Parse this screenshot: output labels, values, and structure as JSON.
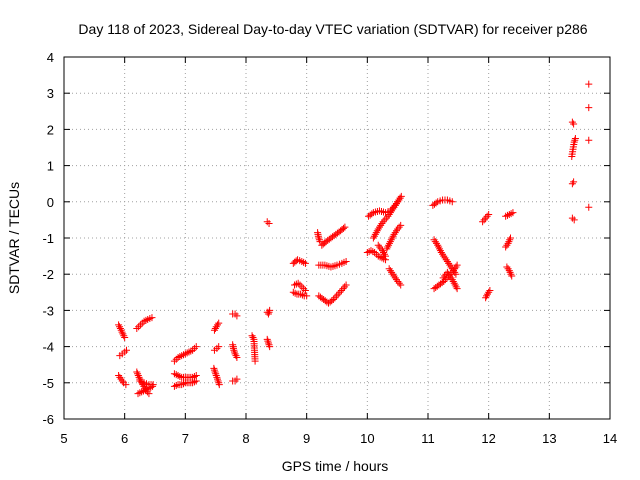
{
  "chart_data": {
    "type": "scatter",
    "title": "Day 118 of 2023, Sidereal Day-to-day VTEC variation (SDTVAR) for receiver p286",
    "xlabel": "GPS time / hours",
    "ylabel": "SDTVAR / TECUs",
    "xlim": [
      5,
      14
    ],
    "ylim": [
      -6,
      4
    ],
    "xticks": [
      "5",
      "6",
      "7",
      "8",
      "9",
      "10",
      "11",
      "12",
      "13",
      "14"
    ],
    "yticks": [
      "-6",
      "-5",
      "-4",
      "-3",
      "-2",
      "-1",
      "0",
      "1",
      "2",
      "3",
      "4"
    ],
    "grid": true,
    "marker": "plus",
    "color": "#ff0000",
    "series": [
      {
        "name": "SDTVAR",
        "segments": [
          [
            [
              5.9,
              -3.4
            ],
            [
              5.93,
              -3.5
            ],
            [
              5.97,
              -3.65
            ],
            [
              6.0,
              -3.75
            ]
          ],
          [
            [
              5.92,
              -4.25
            ],
            [
              5.96,
              -4.2
            ],
            [
              6.0,
              -4.15
            ],
            [
              6.03,
              -4.1
            ]
          ],
          [
            [
              5.9,
              -4.8
            ],
            [
              5.94,
              -4.9
            ],
            [
              5.98,
              -5.0
            ],
            [
              6.02,
              -5.05
            ]
          ],
          [
            [
              6.2,
              -3.5
            ],
            [
              6.26,
              -3.4
            ],
            [
              6.32,
              -3.3
            ],
            [
              6.38,
              -3.25
            ],
            [
              6.45,
              -3.2
            ]
          ],
          [
            [
              6.2,
              -4.7
            ],
            [
              6.25,
              -4.9
            ],
            [
              6.3,
              -5.05
            ],
            [
              6.35,
              -5.2
            ],
            [
              6.4,
              -5.3
            ]
          ],
          [
            [
              6.22,
              -5.3
            ],
            [
              6.28,
              -5.25
            ],
            [
              6.34,
              -5.2
            ],
            [
              6.4,
              -5.15
            ],
            [
              6.46,
              -5.1
            ]
          ],
          [
            [
              6.25,
              -4.95
            ],
            [
              6.32,
              -5.0
            ],
            [
              6.4,
              -5.05
            ],
            [
              6.47,
              -5.05
            ]
          ],
          [
            [
              6.82,
              -4.4
            ],
            [
              6.88,
              -4.3
            ],
            [
              6.94,
              -4.25
            ],
            [
              7.0,
              -4.2
            ],
            [
              7.06,
              -4.15
            ],
            [
              7.12,
              -4.1
            ],
            [
              7.18,
              -4.0
            ]
          ],
          [
            [
              6.82,
              -4.75
            ],
            [
              6.88,
              -4.8
            ],
            [
              6.94,
              -4.85
            ],
            [
              7.0,
              -4.85
            ],
            [
              7.06,
              -4.85
            ],
            [
              7.12,
              -4.85
            ],
            [
              7.18,
              -4.8
            ]
          ],
          [
            [
              6.82,
              -5.1
            ],
            [
              6.88,
              -5.05
            ],
            [
              6.94,
              -5.05
            ],
            [
              7.0,
              -5.0
            ],
            [
              7.06,
              -5.0
            ],
            [
              7.12,
              -5.0
            ],
            [
              7.18,
              -4.95
            ]
          ],
          [
            [
              7.48,
              -3.55
            ],
            [
              7.51,
              -3.45
            ],
            [
              7.55,
              -3.35
            ]
          ],
          [
            [
              7.48,
              -4.1
            ],
            [
              7.52,
              -4.05
            ],
            [
              7.55,
              -4.0
            ]
          ],
          [
            [
              7.47,
              -4.6
            ],
            [
              7.5,
              -4.75
            ],
            [
              7.53,
              -4.9
            ],
            [
              7.56,
              -5.05
            ]
          ],
          [
            [
              7.78,
              -3.1
            ],
            [
              7.82,
              -3.1
            ],
            [
              7.85,
              -3.15
            ]
          ],
          [
            [
              7.78,
              -3.95
            ],
            [
              7.8,
              -4.1
            ],
            [
              7.82,
              -4.2
            ],
            [
              7.85,
              -4.3
            ]
          ],
          [
            [
              7.78,
              -4.95
            ],
            [
              7.82,
              -4.95
            ],
            [
              7.85,
              -4.9
            ]
          ],
          [
            [
              8.1,
              -3.7
            ],
            [
              8.13,
              -3.8
            ],
            [
              8.15,
              -4.4
            ]
          ],
          [
            [
              8.35,
              -0.55
            ],
            [
              8.38,
              -0.6
            ]
          ],
          [
            [
              8.35,
              -3.05
            ],
            [
              8.37,
              -3.1
            ],
            [
              8.39,
              -3.0
            ]
          ],
          [
            [
              8.35,
              -3.8
            ],
            [
              8.37,
              -3.9
            ],
            [
              8.39,
              -4.0
            ]
          ],
          [
            [
              8.78,
              -1.7
            ],
            [
              8.85,
              -1.6
            ],
            [
              8.92,
              -1.65
            ],
            [
              8.98,
              -1.7
            ]
          ],
          [
            [
              8.78,
              -2.5
            ],
            [
              8.84,
              -2.55
            ],
            [
              8.9,
              -2.55
            ],
            [
              8.96,
              -2.6
            ],
            [
              9.0,
              -2.6
            ]
          ],
          [
            [
              8.8,
              -2.3
            ],
            [
              8.86,
              -2.25
            ],
            [
              8.92,
              -2.35
            ],
            [
              8.98,
              -2.45
            ]
          ],
          [
            [
              9.18,
              -0.85
            ],
            [
              9.2,
              -1.0
            ],
            [
              9.22,
              -1.1
            ]
          ],
          [
            [
              9.2,
              -2.6
            ],
            [
              9.28,
              -2.7
            ],
            [
              9.36,
              -2.8
            ],
            [
              9.44,
              -2.7
            ],
            [
              9.52,
              -2.55
            ],
            [
              9.6,
              -2.4
            ],
            [
              9.65,
              -2.3
            ]
          ],
          [
            [
              9.25,
              -1.2
            ],
            [
              9.32,
              -1.1
            ],
            [
              9.4,
              -1.0
            ],
            [
              9.48,
              -0.9
            ],
            [
              9.56,
              -0.8
            ],
            [
              9.63,
              -0.7
            ]
          ],
          [
            [
              9.2,
              -1.75
            ],
            [
              9.3,
              -1.75
            ],
            [
              9.4,
              -1.8
            ],
            [
              9.5,
              -1.75
            ],
            [
              9.58,
              -1.7
            ],
            [
              9.65,
              -1.65
            ]
          ],
          [
            [
              10.0,
              -1.4
            ],
            [
              10.06,
              -1.35
            ],
            [
              10.12,
              -1.4
            ],
            [
              10.18,
              -1.5
            ],
            [
              10.24,
              -1.55
            ],
            [
              10.3,
              -1.6
            ]
          ],
          [
            [
              10.02,
              -0.4
            ],
            [
              10.1,
              -0.3
            ],
            [
              10.2,
              -0.25
            ],
            [
              10.3,
              -0.3
            ],
            [
              10.38,
              -0.25
            ],
            [
              10.46,
              -0.1
            ],
            [
              10.54,
              0.1
            ]
          ],
          [
            [
              10.1,
              -1.0
            ],
            [
              10.18,
              -0.75
            ],
            [
              10.26,
              -0.55
            ],
            [
              10.34,
              -0.4
            ],
            [
              10.42,
              -0.2
            ],
            [
              10.5,
              0.0
            ],
            [
              10.56,
              0.15
            ]
          ],
          [
            [
              10.18,
              -1.2
            ],
            [
              10.25,
              -1.35
            ],
            [
              10.3,
              -1.5
            ]
          ],
          [
            [
              10.32,
              -1.3
            ],
            [
              10.38,
              -1.1
            ],
            [
              10.44,
              -0.9
            ],
            [
              10.5,
              -0.75
            ],
            [
              10.55,
              -0.65
            ]
          ],
          [
            [
              10.36,
              -1.85
            ],
            [
              10.42,
              -2.0
            ],
            [
              10.48,
              -2.15
            ],
            [
              10.55,
              -2.3
            ]
          ],
          [
            [
              11.08,
              -0.1
            ],
            [
              11.16,
              0.0
            ],
            [
              11.24,
              0.05
            ],
            [
              11.32,
              0.05
            ],
            [
              11.4,
              0.0
            ]
          ],
          [
            [
              11.1,
              -1.05
            ],
            [
              11.16,
              -1.2
            ],
            [
              11.22,
              -1.4
            ],
            [
              11.28,
              -1.55
            ],
            [
              11.34,
              -1.7
            ],
            [
              11.4,
              -1.85
            ],
            [
              11.46,
              -2.0
            ]
          ],
          [
            [
              11.1,
              -2.4
            ],
            [
              11.18,
              -2.3
            ],
            [
              11.26,
              -2.2
            ],
            [
              11.34,
              -2.05
            ],
            [
              11.42,
              -1.9
            ],
            [
              11.48,
              -1.75
            ]
          ],
          [
            [
              11.25,
              -2.1
            ],
            [
              11.32,
              -1.95
            ],
            [
              11.4,
              -2.15
            ],
            [
              11.48,
              -2.4
            ]
          ],
          [
            [
              11.9,
              -0.55
            ],
            [
              11.95,
              -0.45
            ],
            [
              12.0,
              -0.35
            ]
          ],
          [
            [
              11.95,
              -2.65
            ],
            [
              11.98,
              -2.55
            ],
            [
              12.02,
              -2.45
            ]
          ],
          [
            [
              12.28,
              -1.25
            ],
            [
              12.32,
              -1.15
            ],
            [
              12.36,
              -1.0
            ]
          ],
          [
            [
              12.28,
              -0.4
            ],
            [
              12.34,
              -0.35
            ],
            [
              12.4,
              -0.3
            ]
          ],
          [
            [
              12.3,
              -1.8
            ],
            [
              12.34,
              -1.9
            ],
            [
              12.38,
              -2.05
            ]
          ],
          [
            [
              13.38,
              2.2
            ],
            [
              13.4,
              2.15
            ]
          ],
          [
            [
              13.37,
              1.25
            ],
            [
              13.39,
              1.45
            ],
            [
              13.41,
              1.65
            ],
            [
              13.43,
              1.75
            ]
          ],
          [
            [
              13.38,
              0.5
            ],
            [
              13.4,
              0.55
            ]
          ],
          [
            [
              13.38,
              -0.45
            ],
            [
              13.41,
              -0.5
            ]
          ],
          [
            [
              13.65,
              3.25
            ]
          ],
          [
            [
              13.65,
              2.6
            ]
          ],
          [
            [
              13.65,
              1.7
            ]
          ],
          [
            [
              13.65,
              -0.15
            ]
          ]
        ]
      }
    ]
  }
}
